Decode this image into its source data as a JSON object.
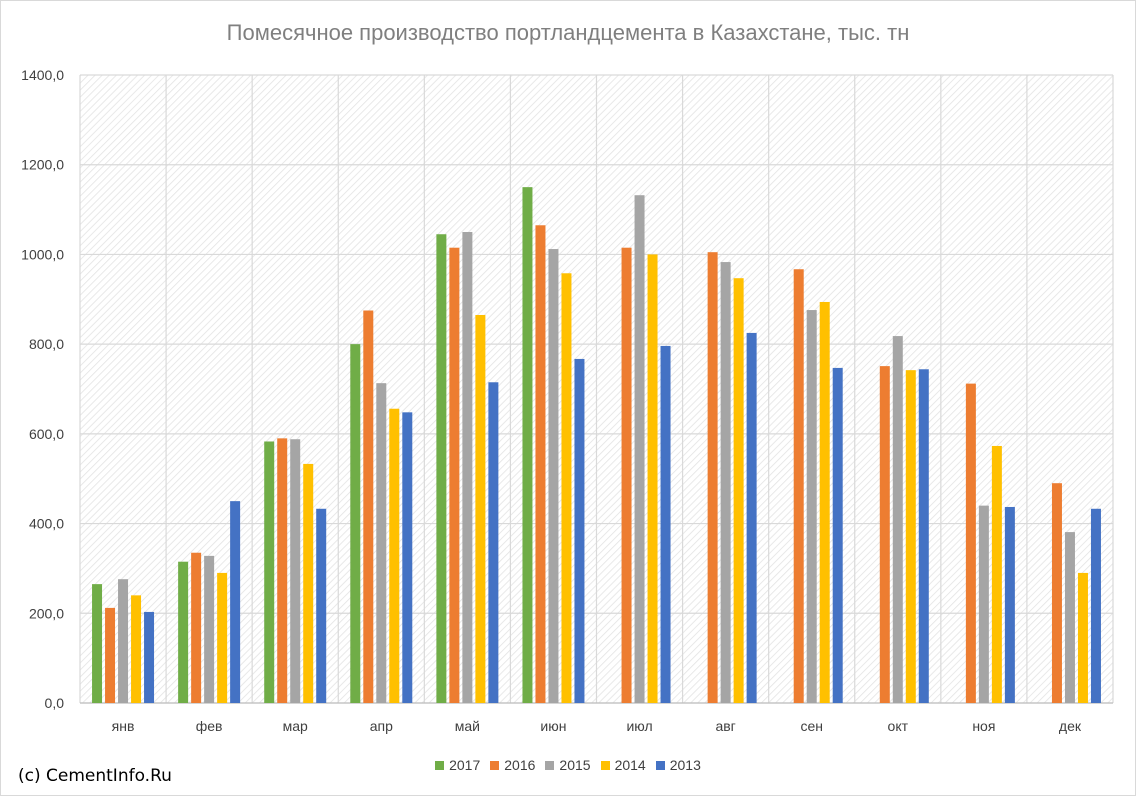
{
  "chart_data": {
    "type": "bar",
    "title": "Помесячное производство портландцемента в Казахстане, тыс. тн",
    "categories": [
      "янв",
      "фев",
      "мар",
      "апр",
      "май",
      "июн",
      "июл",
      "авг",
      "сен",
      "окт",
      "ноя",
      "дек"
    ],
    "yticks": [
      "0,0",
      "200,0",
      "400,0",
      "600,0",
      "800,0",
      "1000,0",
      "1200,0",
      "1400,0"
    ],
    "ylim": [
      0,
      1400
    ],
    "grid": true,
    "legend_position": "bottom",
    "series": [
      {
        "name": "2017",
        "color": "#70ad47",
        "values": [
          265,
          315,
          583,
          800,
          1045,
          1150,
          null,
          null,
          null,
          null,
          null,
          null
        ]
      },
      {
        "name": "2016",
        "color": "#ed7d31",
        "values": [
          212,
          335,
          590,
          875,
          1015,
          1065,
          1015,
          1005,
          967,
          751,
          712,
          490
        ]
      },
      {
        "name": "2015",
        "color": "#a5a5a5",
        "values": [
          276,
          328,
          588,
          713,
          1050,
          1012,
          1132,
          983,
          876,
          818,
          440,
          381
        ]
      },
      {
        "name": "2014",
        "color": "#ffc000",
        "values": [
          240,
          290,
          533,
          656,
          865,
          958,
          1000,
          947,
          894,
          742,
          573,
          290
        ]
      },
      {
        "name": "2013",
        "color": "#4472c4",
        "values": [
          203,
          450,
          433,
          648,
          715,
          767,
          796,
          825,
          747,
          744,
          437,
          433
        ]
      }
    ]
  },
  "footer": {
    "credit": "(c) CementInfo.Ru"
  }
}
